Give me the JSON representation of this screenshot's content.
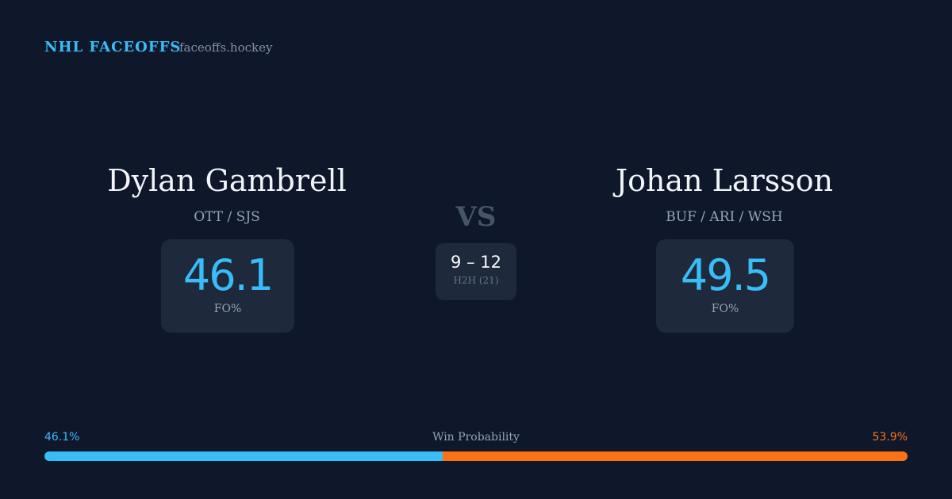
{
  "header": {
    "brand": "NHL FACEOFFS",
    "site": "faceoffs.hockey"
  },
  "players": [
    {
      "name": "Dylan Gambrell",
      "teams": "OTT / SJS",
      "fo_pct": 46.1,
      "fo_label": "FO%"
    },
    {
      "name": "Johan Larsson",
      "teams": "BUF / ARI / WSH",
      "fo_pct": 49.5,
      "fo_label": "FO%"
    }
  ],
  "vs": "VS",
  "h2h": {
    "score": "9 – 12",
    "label": "H2H (21)"
  },
  "win_probability": {
    "title": "Win Probability",
    "segments": [
      {
        "value": 46.1,
        "label": "46.1%",
        "color": "#38bdf8"
      },
      {
        "value": 53.9,
        "label": "53.9%",
        "color": "#f97316"
      }
    ]
  }
}
